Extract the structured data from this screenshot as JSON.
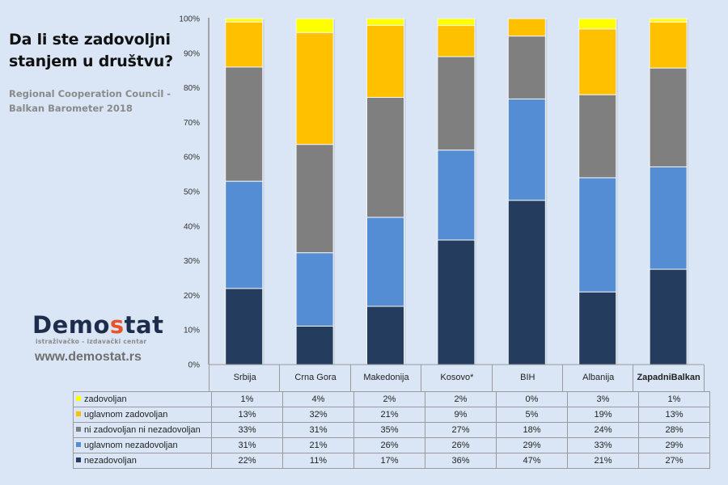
{
  "header": {
    "title_line1": "Da li ste zadovoljni",
    "title_line2": "stanjem u društvu?",
    "source_line1": "Regional Cooperation Council -",
    "source_line2": "Balkan Barometer 2018"
  },
  "branding": {
    "logo_part1": "Demo",
    "logo_accent": "s",
    "logo_part2": "tat",
    "tagline": "istraživačko - izdavački  centar",
    "website": "www.demostat.rs",
    "logo_color": "#1f2d4d",
    "accent_color": "#e8542a"
  },
  "chart_data": {
    "type": "bar",
    "stacked": true,
    "normalized": true,
    "title": "Da li ste zadovoljni stanjem u društvu?",
    "subtitle": "Regional Cooperation Council - Balkan Barometer 2018",
    "xlabel": "",
    "ylabel": "",
    "ylim": [
      0,
      100
    ],
    "yticks": [
      "0%",
      "10%",
      "20%",
      "30%",
      "40%",
      "50%",
      "60%",
      "70%",
      "80%",
      "90%",
      "100%"
    ],
    "grid": false,
    "legend_placement": "data-table-bottom",
    "categories": [
      "Srbija",
      "Crna Gora",
      "Makedonija",
      "Kosovo*",
      "BIH",
      "Albanija",
      "Zapadni Balkan"
    ],
    "series": [
      {
        "name": "nezadovoljan",
        "color": "#243c5e",
        "values": [
          22,
          11,
          17,
          36,
          47,
          21,
          27
        ]
      },
      {
        "name": "uglavnom nezadovoljan",
        "color": "#548dd4",
        "values": [
          31,
          21,
          26,
          26,
          29,
          33,
          29
        ]
      },
      {
        "name": "ni zadovoljan ni nezadovoljan",
        "color": "#7f7f7f",
        "values": [
          33,
          31,
          35,
          27,
          18,
          24,
          28
        ]
      },
      {
        "name": "uglavnom zadovoljan",
        "color": "#ffc000",
        "values": [
          13,
          32,
          21,
          9,
          5,
          19,
          13
        ]
      },
      {
        "name": "zadovoljan",
        "color": "#ffff00",
        "values": [
          1,
          4,
          2,
          2,
          0,
          3,
          1
        ]
      }
    ],
    "table_rows": [
      {
        "label": "zadovoljan",
        "color": "#ffff00",
        "cells": [
          "1%",
          "4%",
          "2%",
          "2%",
          "0%",
          "3%",
          "1%"
        ]
      },
      {
        "label": "uglavnom zadovoljan",
        "color": "#ffc000",
        "cells": [
          "13%",
          "32%",
          "21%",
          "9%",
          "5%",
          "19%",
          "13%"
        ]
      },
      {
        "label": "ni zadovoljan ni nezadovoljan",
        "color": "#7f7f7f",
        "cells": [
          "33%",
          "31%",
          "35%",
          "27%",
          "18%",
          "24%",
          "28%"
        ]
      },
      {
        "label": "uglavnom nezadovoljan",
        "color": "#548dd4",
        "cells": [
          "31%",
          "21%",
          "26%",
          "26%",
          "29%",
          "33%",
          "29%"
        ]
      },
      {
        "label": "nezadovoljan",
        "color": "#243c5e",
        "cells": [
          "22%",
          "11%",
          "17%",
          "36%",
          "47%",
          "21%",
          "27%"
        ]
      }
    ]
  }
}
